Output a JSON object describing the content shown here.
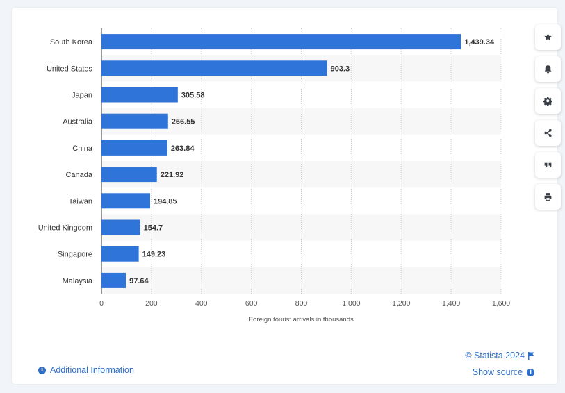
{
  "chart_data": {
    "type": "bar",
    "orientation": "horizontal",
    "categories": [
      "South Korea",
      "United States",
      "Japan",
      "Australia",
      "China",
      "Canada",
      "Taiwan",
      "United Kingdom",
      "Singapore",
      "Malaysia"
    ],
    "values": [
      1439.34,
      903.3,
      305.58,
      266.55,
      263.84,
      221.92,
      194.85,
      154.7,
      149.23,
      97.64
    ],
    "value_labels": [
      "1,439.34",
      "903.3",
      "305.58",
      "266.55",
      "263.84",
      "221.92",
      "194.85",
      "154.7",
      "149.23",
      "97.64"
    ],
    "xlabel": "Foreign tourist arrivals in thousands",
    "xlim": [
      0,
      1600
    ],
    "xticks": [
      0,
      200,
      400,
      600,
      800,
      1000,
      1200,
      1400,
      1600
    ],
    "xtick_labels": [
      "0",
      "200",
      "400",
      "600",
      "800",
      "1,000",
      "1,200",
      "1,400",
      "1,600"
    ],
    "grid": "vertical dotted",
    "bar_color": "#2f74d8"
  },
  "sidebar": {
    "buttons": [
      "star-icon",
      "bell-icon",
      "gear-icon",
      "share-icon",
      "quote-icon",
      "print-icon"
    ]
  },
  "footer": {
    "additional_info": "Additional Information",
    "credit": "© Statista 2024",
    "show_source": "Show source"
  },
  "colors": {
    "accent": "#2d6ec8",
    "bar": "#2f74d8"
  }
}
